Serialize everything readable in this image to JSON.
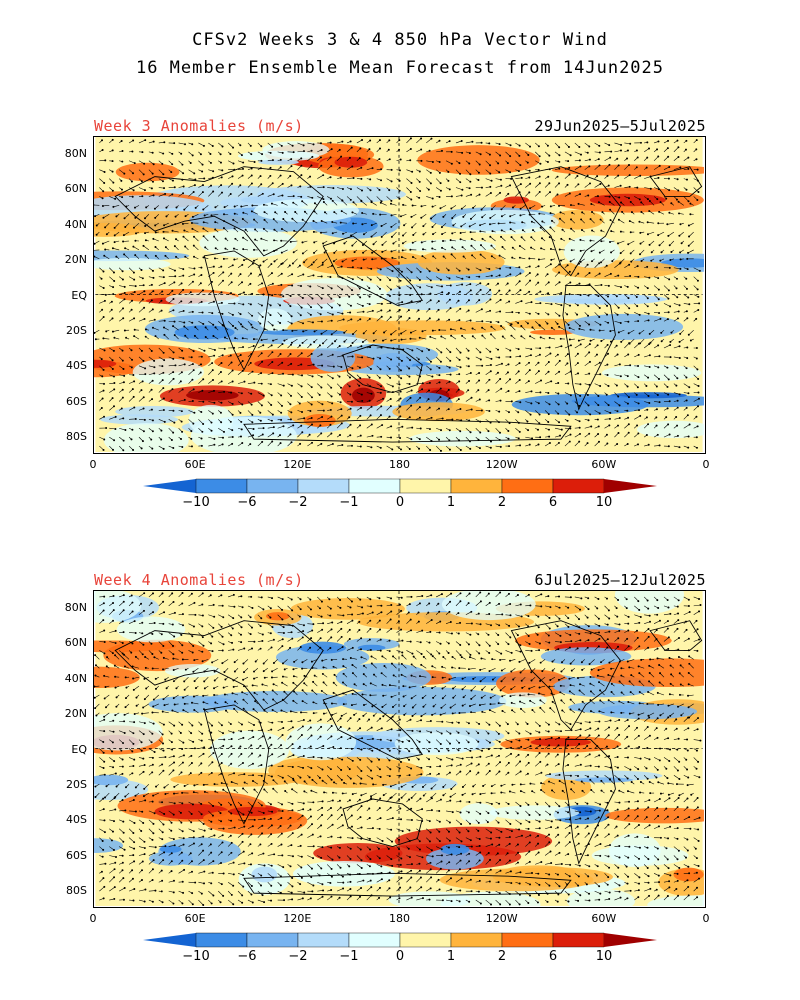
{
  "title": {
    "line1": "CFSv2 Weeks 3 & 4 850 hPa Vector Wind",
    "line2": "16 Member Ensemble Mean Forecast from 14Jun2025"
  },
  "panels": [
    {
      "label_left": "Week 3 Anomalies (m/s)",
      "label_right": "29Jun2025—5Jul2025"
    },
    {
      "label_left": "Week 4 Anomalies (m/s)",
      "label_right": "6Jul2025—12Jul2025"
    }
  ],
  "lat_labels": [
    "80N",
    "60N",
    "40N",
    "20N",
    "EQ",
    "20S",
    "40S",
    "60S",
    "80S"
  ],
  "lon_labels": [
    "0",
    "60E",
    "120E",
    "180",
    "120W",
    "60W",
    "0"
  ],
  "colorbar": {
    "labels": [
      "−10",
      "−6",
      "−2",
      "−1",
      "0",
      "1",
      "2",
      "6",
      "10"
    ],
    "colors": [
      "#1464d2",
      "#3c8ce6",
      "#78b4f0",
      "#b4dcfa",
      "#e1ffff",
      "#fff5aa",
      "#ffb43c",
      "#ff6e14",
      "#dc1e0a",
      "#a00000"
    ]
  }
}
